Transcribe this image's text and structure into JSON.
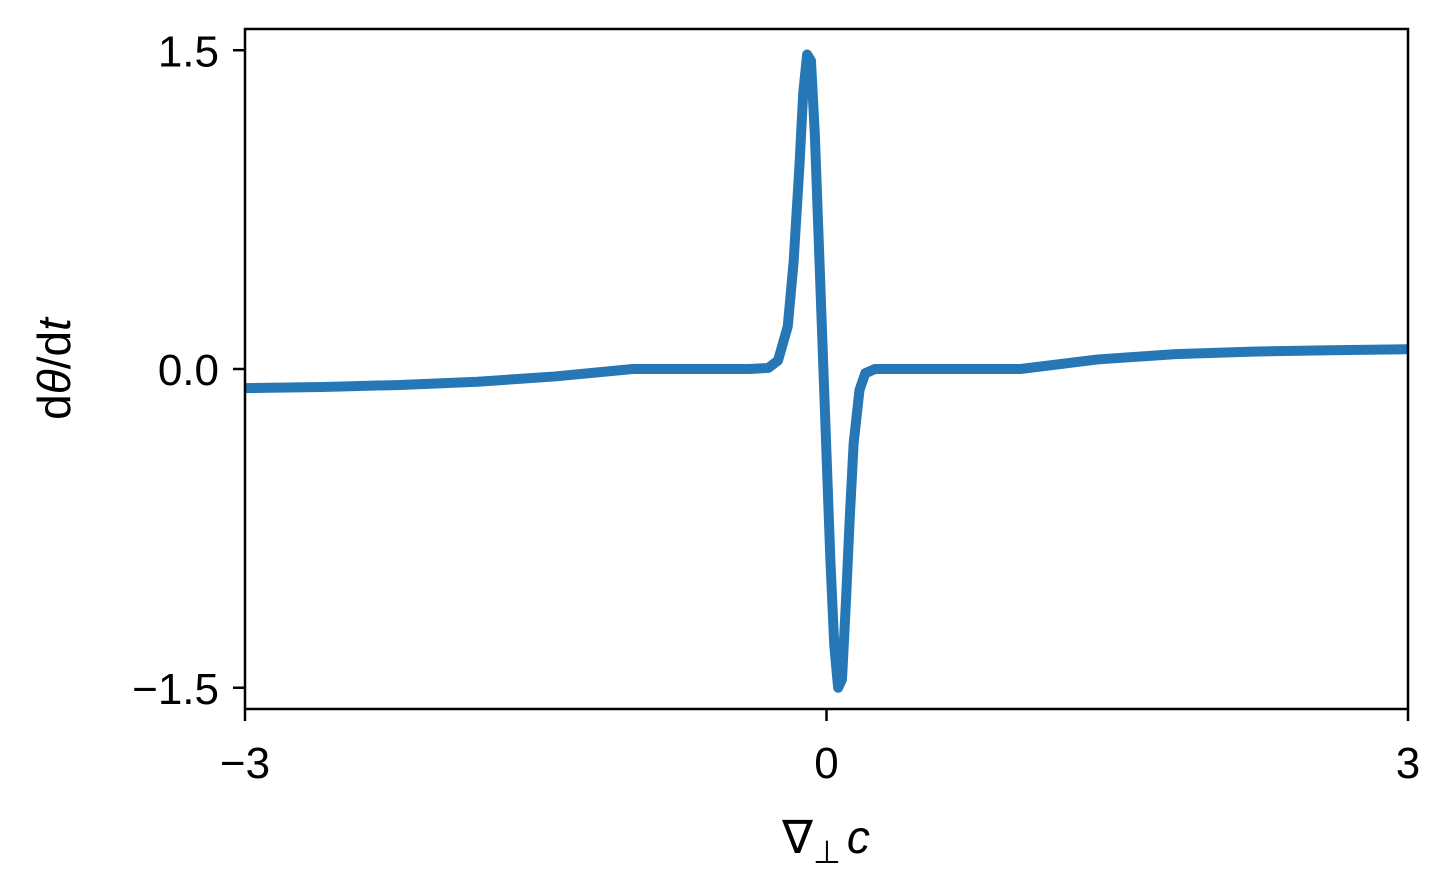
{
  "chart_data": {
    "type": "line",
    "title": "",
    "xlabel_parts": {
      "nabla": "∇",
      "sub": "⊥",
      "var": "c"
    },
    "ylabel_parts": {
      "d1": "d",
      "theta": "θ",
      "mid": "/d",
      "t": "t"
    },
    "xlim": [
      -3,
      3
    ],
    "ylim": [
      -1.6,
      1.6
    ],
    "xticks": [
      {
        "value": -3,
        "label": "−3"
      },
      {
        "value": 0,
        "label": "0"
      },
      {
        "value": 3,
        "label": "3"
      }
    ],
    "yticks": [
      {
        "value": 1.5,
        "label": "1.5"
      },
      {
        "value": 0.0,
        "label": "0.0"
      },
      {
        "value": -1.5,
        "label": "−1.5"
      }
    ],
    "grid": false,
    "series": [
      {
        "color": "#2677b5",
        "x": [
          -3.0,
          -2.6,
          -2.2,
          -1.8,
          -1.4,
          -1.0,
          -0.8,
          -0.4,
          -0.3,
          -0.25,
          -0.2,
          -0.17,
          -0.14,
          -0.12,
          -0.1,
          -0.08,
          -0.06,
          -0.04,
          -0.02,
          0.0,
          0.02,
          0.04,
          0.06,
          0.08,
          0.1,
          0.12,
          0.14,
          0.17,
          0.2,
          0.25,
          0.3,
          0.4,
          0.6,
          1.0,
          1.4,
          1.8,
          2.2,
          2.6,
          3.0
        ],
        "y": [
          -0.09,
          -0.085,
          -0.075,
          -0.06,
          -0.035,
          0.0,
          0.0,
          0.0,
          0.005,
          0.04,
          0.2,
          0.5,
          0.95,
          1.3,
          1.48,
          1.45,
          1.1,
          0.6,
          0.1,
          -0.4,
          -0.9,
          -1.3,
          -1.5,
          -1.46,
          -1.1,
          -0.7,
          -0.35,
          -0.1,
          -0.02,
          0.0,
          0.0,
          0.0,
          0.0,
          0.0,
          0.045,
          0.07,
          0.082,
          0.088,
          0.093
        ]
      }
    ]
  }
}
